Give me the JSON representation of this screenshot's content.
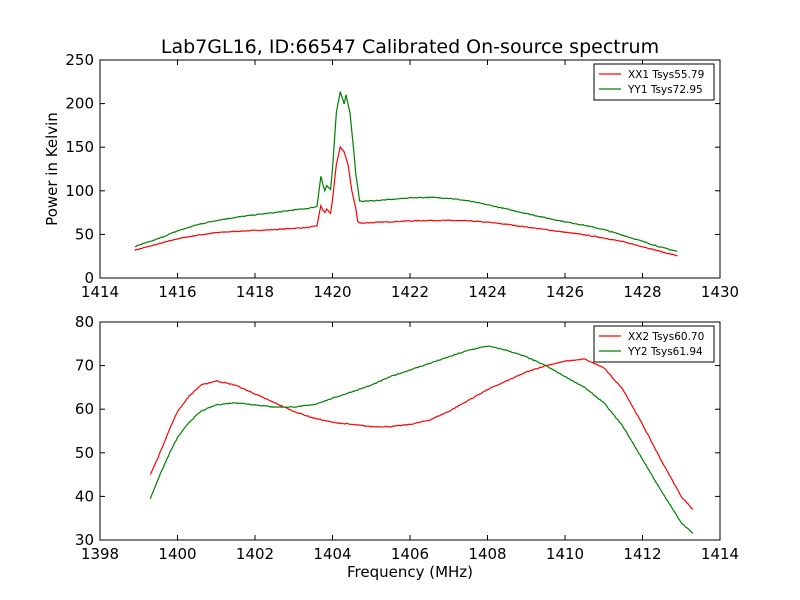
{
  "title": "Lab7GL16, ID:66547 Calibrated On-source spectrum",
  "chart_data": [
    {
      "type": "line",
      "ylabel": "Power in Kelvin",
      "xlabel": "",
      "xlim": [
        1414,
        1430
      ],
      "ylim": [
        0,
        250
      ],
      "xticks": [
        1414,
        1416,
        1418,
        1420,
        1422,
        1424,
        1426,
        1428,
        1430
      ],
      "yticks": [
        0,
        50,
        100,
        150,
        200,
        250
      ],
      "grid": false,
      "legend": "top-right",
      "series": [
        {
          "name": "XX1 Tsys55.79",
          "color": "#ff0000",
          "x": [
            1414.9,
            1415.5,
            1416,
            1416.5,
            1417,
            1417.5,
            1418,
            1418.5,
            1419,
            1419.4,
            1419.6,
            1419.7,
            1419.75,
            1419.8,
            1419.85,
            1419.95,
            1420.0,
            1420.1,
            1420.2,
            1420.3,
            1420.4,
            1420.5,
            1420.6,
            1420.65,
            1420.7,
            1421,
            1421.5,
            1422,
            1422.5,
            1423,
            1423.5,
            1424,
            1424.5,
            1425,
            1425.5,
            1426,
            1426.5,
            1427,
            1427.5,
            1428,
            1428.5,
            1428.9
          ],
          "y": [
            32,
            39,
            45,
            49,
            52,
            53.5,
            54.5,
            55.5,
            57,
            58,
            60,
            83,
            78,
            75,
            79,
            74,
            90,
            130,
            150,
            145,
            130,
            100,
            80,
            65,
            63,
            63.5,
            64.5,
            65.5,
            66,
            66,
            65.5,
            64,
            61.5,
            58.5,
            55.5,
            52.5,
            49.5,
            46,
            41.5,
            36,
            30,
            25.5
          ]
        },
        {
          "name": "YY1 Tsys72.95",
          "color": "#008000",
          "x": [
            1414.9,
            1415.5,
            1416,
            1416.5,
            1417,
            1417.5,
            1418,
            1418.5,
            1419,
            1419.4,
            1419.6,
            1419.7,
            1419.75,
            1419.8,
            1419.85,
            1419.95,
            1420.0,
            1420.1,
            1420.2,
            1420.3,
            1420.35,
            1420.45,
            1420.55,
            1420.6,
            1420.7,
            1421,
            1421.5,
            1422,
            1422.5,
            1423,
            1423.5,
            1424,
            1424.5,
            1425,
            1425.5,
            1426,
            1426.5,
            1427,
            1427.5,
            1428,
            1428.5,
            1428.9
          ],
          "y": [
            36,
            45,
            54,
            61,
            66,
            69.5,
            72.5,
            75,
            78,
            80,
            82,
            117,
            108,
            100,
            106,
            101,
            125,
            190,
            214,
            200,
            210,
            190,
            145,
            120,
            88,
            88.5,
            90,
            92,
            92.5,
            91.5,
            88.5,
            84,
            79,
            74,
            69,
            64.5,
            60.5,
            55.5,
            49,
            42,
            35,
            30.5
          ]
        }
      ]
    },
    {
      "type": "line",
      "xlabel": "Frequency (MHz)",
      "ylabel": "",
      "xlim": [
        1398,
        1414
      ],
      "ylim": [
        30,
        80
      ],
      "xticks": [
        1398,
        1400,
        1402,
        1404,
        1406,
        1408,
        1410,
        1412,
        1414
      ],
      "yticks": [
        30,
        40,
        50,
        60,
        70,
        80
      ],
      "grid": false,
      "legend": "top-right",
      "series": [
        {
          "name": "XX2 Tsys60.70",
          "color": "#ff0000",
          "x": [
            1399.3,
            1399.5,
            1399.8,
            1400,
            1400.3,
            1400.6,
            1401,
            1401.5,
            1402,
            1402.5,
            1403,
            1403.5,
            1404,
            1404.5,
            1405,
            1405.5,
            1406,
            1406.5,
            1407,
            1407.5,
            1408,
            1408.5,
            1409,
            1409.5,
            1410,
            1410.5,
            1411,
            1411.5,
            1412,
            1412.5,
            1413,
            1413.3
          ],
          "y": [
            45,
            49,
            55.5,
            59.5,
            63,
            65.5,
            66.5,
            65.5,
            63.5,
            61.5,
            59.5,
            58,
            57,
            56.5,
            56,
            56,
            56.5,
            57.5,
            59.5,
            62,
            64.5,
            66.5,
            68.5,
            70,
            71,
            71.5,
            69.5,
            64.5,
            56.5,
            48,
            40,
            37
          ]
        },
        {
          "name": "YY2 Tsys61.94",
          "color": "#008000",
          "x": [
            1399.3,
            1399.5,
            1399.8,
            1400,
            1400.3,
            1400.6,
            1401,
            1401.5,
            1402,
            1402.5,
            1403,
            1403.5,
            1404,
            1404.5,
            1405,
            1405.5,
            1406,
            1406.5,
            1407,
            1407.5,
            1408,
            1408.5,
            1409,
            1409.5,
            1410,
            1410.5,
            1411,
            1411.5,
            1412,
            1412.5,
            1413,
            1413.3
          ],
          "y": [
            39.5,
            44,
            50,
            53.5,
            57,
            59.5,
            61,
            61.5,
            61,
            60.5,
            60.5,
            61,
            62.5,
            64,
            65.5,
            67.5,
            69,
            70.5,
            72,
            73.5,
            74.5,
            73.5,
            72,
            70,
            67.5,
            65,
            61.5,
            56,
            48.5,
            41,
            34,
            31.5
          ]
        }
      ]
    }
  ]
}
